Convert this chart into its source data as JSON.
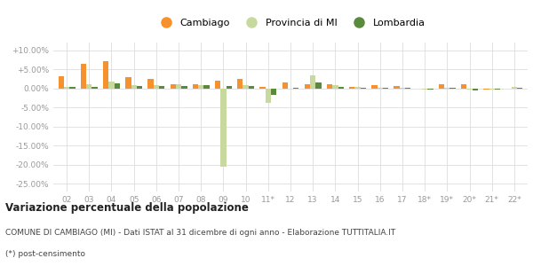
{
  "categories": [
    "02",
    "03",
    "04",
    "05",
    "06",
    "07",
    "08",
    "09",
    "10",
    "11*",
    "12",
    "13",
    "14",
    "15",
    "16",
    "17",
    "18*",
    "19*",
    "20*",
    "21*",
    "22*"
  ],
  "cambiago": [
    3.2,
    6.5,
    7.2,
    3.0,
    2.5,
    1.2,
    1.0,
    2.0,
    2.5,
    0.4,
    1.5,
    1.2,
    1.0,
    0.5,
    0.8,
    0.6,
    -0.1,
    1.1,
    1.0,
    -0.2,
    0.0
  ],
  "provincia_mi": [
    0.5,
    1.2,
    1.8,
    0.8,
    0.8,
    1.0,
    0.9,
    -20.5,
    0.9,
    -3.7,
    0.0,
    3.3,
    0.8,
    0.3,
    0.2,
    0.2,
    -0.4,
    0.1,
    -0.3,
    -0.2,
    0.3
  ],
  "lombardia": [
    0.4,
    0.5,
    1.4,
    0.6,
    0.6,
    0.7,
    0.8,
    0.6,
    0.7,
    -1.6,
    0.2,
    1.5,
    0.5,
    0.2,
    0.2,
    0.1,
    -0.2,
    0.1,
    -0.5,
    -0.3,
    0.2
  ],
  "color_cambiago": "#f5922f",
  "color_provincia": "#c8d9a0",
  "color_lombardia": "#5a8a3c",
  "title": "Variazione percentuale della popolazione",
  "subtitle": "COMUNE DI CAMBIAGO (MI) - Dati ISTAT al 31 dicembre di ogni anno - Elaborazione TUTTITALIA.IT",
  "footnote": "(*) post-censimento",
  "legend_labels": [
    "Cambiago",
    "Provincia di MI",
    "Lombardia"
  ],
  "ylim": [
    -27,
    12
  ],
  "yticks": [
    10.0,
    5.0,
    0.0,
    -5.0,
    -10.0,
    -15.0,
    -20.0,
    -25.0
  ],
  "bg_color": "#ffffff",
  "grid_color": "#dddddd",
  "bar_width": 0.25
}
